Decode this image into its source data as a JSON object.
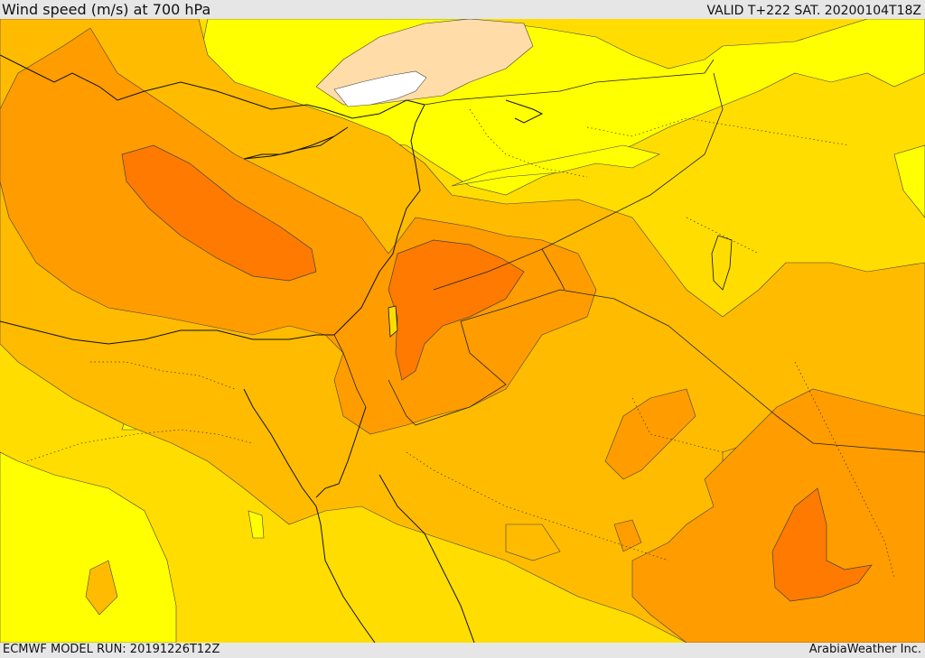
{
  "header": {
    "title": "Wind speed (m/s) at 700 hPa",
    "valid": "VALID T+222 SAT. 20200104T18Z"
  },
  "footer": {
    "model_run": "ECMWF MODEL RUN: 20191226T12Z",
    "credit": "ArabiaWeather Inc."
  },
  "map": {
    "colors": {
      "yellow": "#ffff00",
      "gold": "#ffdd00",
      "amber": "#ffbb00",
      "orange": "#ff9c00",
      "dark_orange": "#ff7a00",
      "light_peach": "#ffdca8",
      "white": "#ffffff",
      "border_color": "#1a1a1a"
    }
  }
}
